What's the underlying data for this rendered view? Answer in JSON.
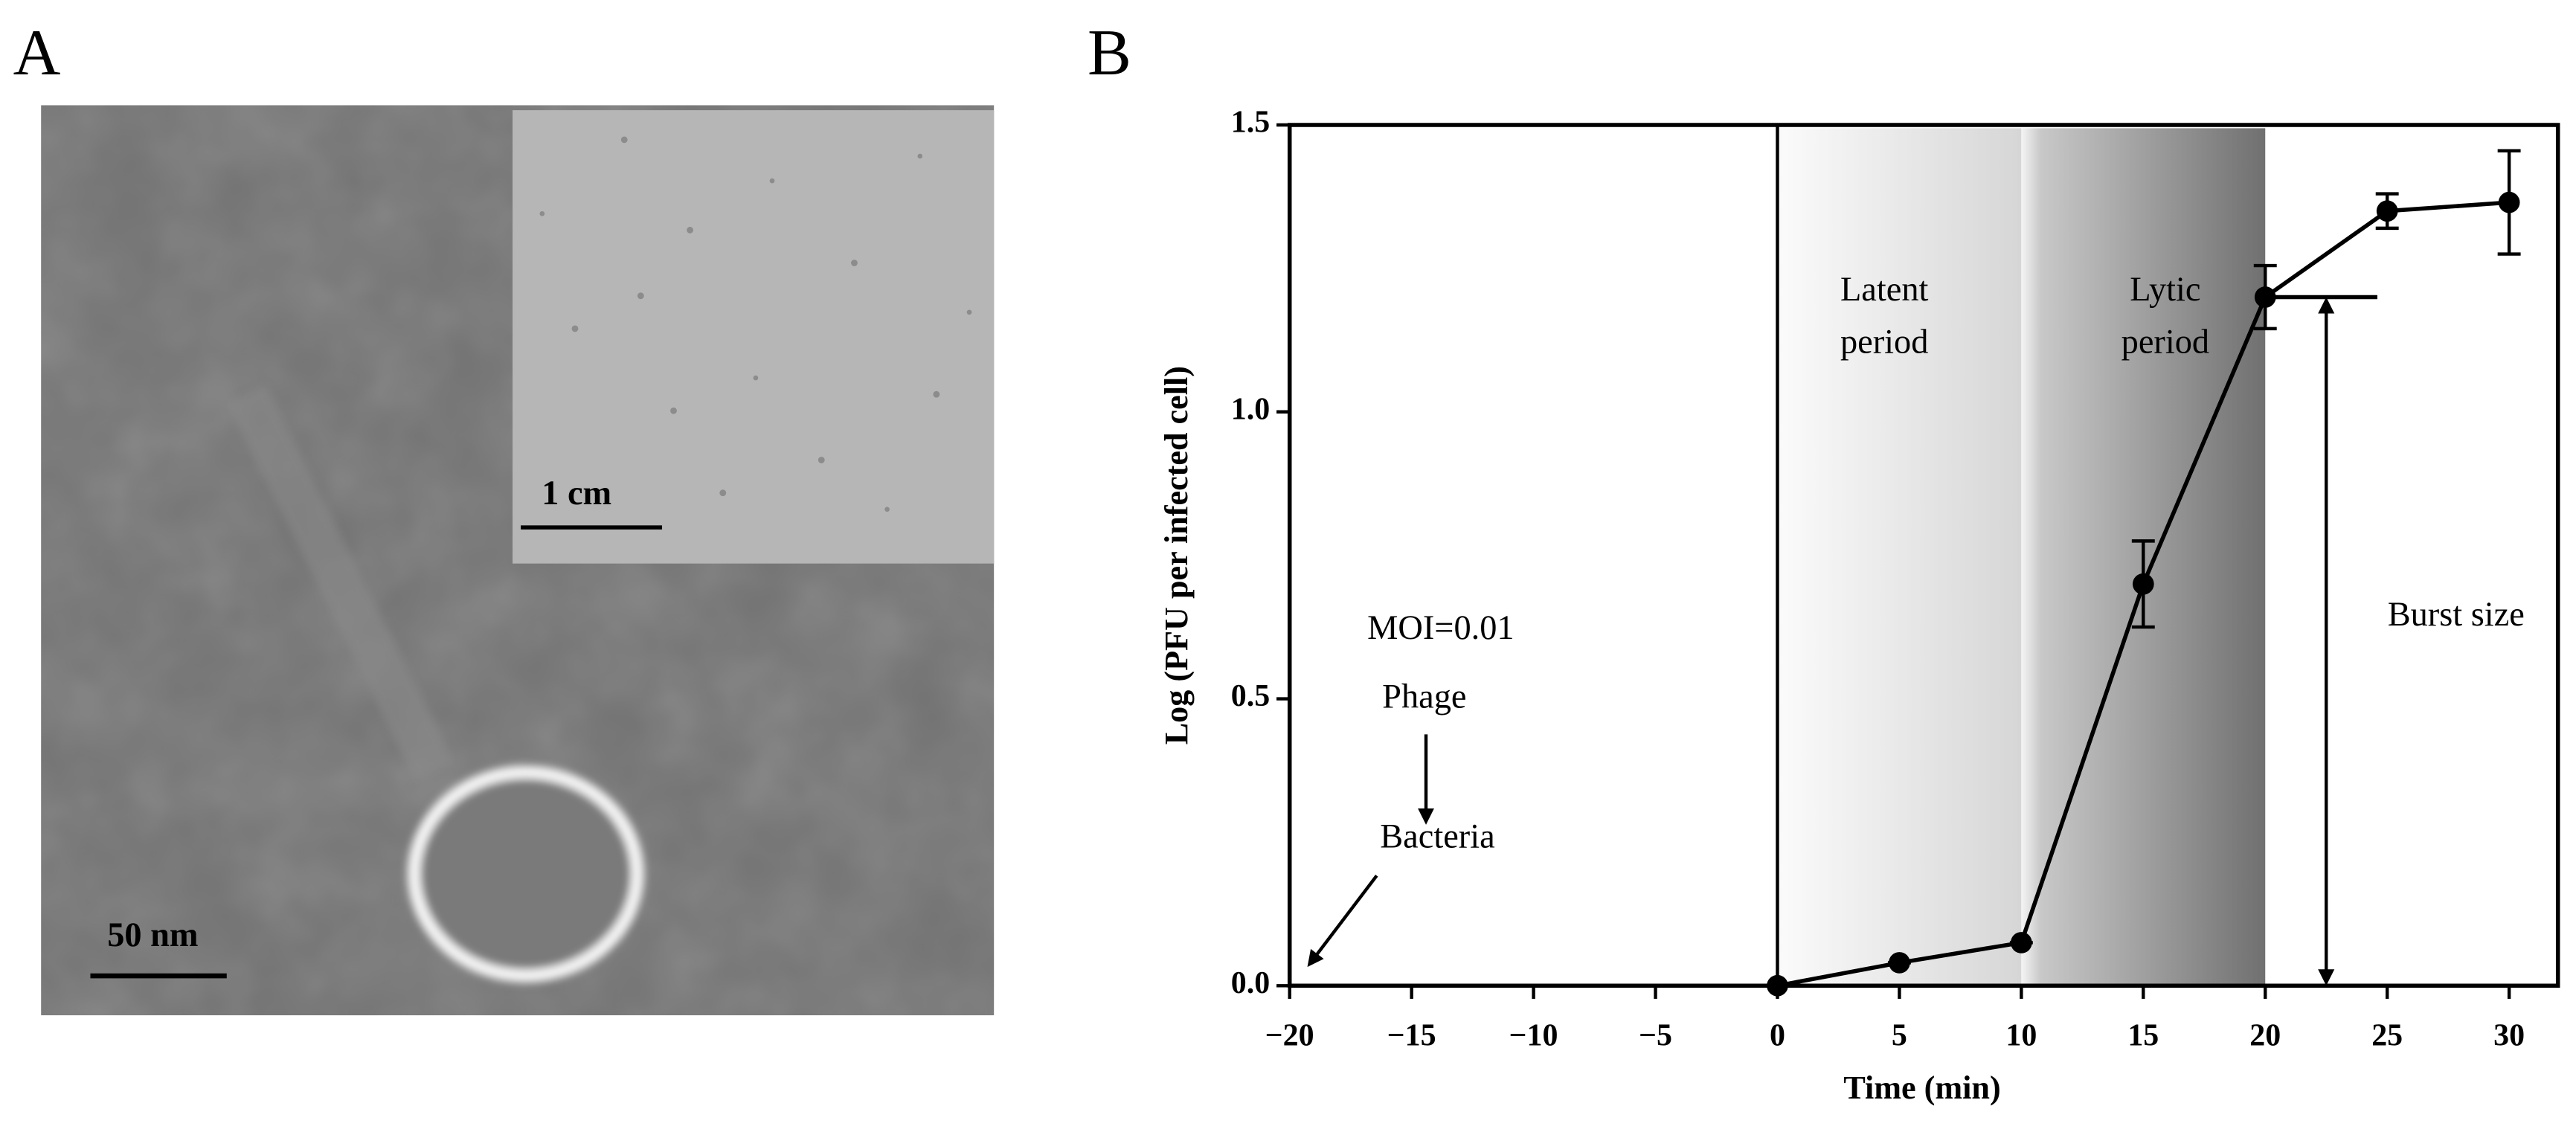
{
  "panel_a": {
    "label": "A",
    "scale_bar": "50 nm",
    "inset_scale_bar": "1 cm"
  },
  "chart_data": {
    "type": "line",
    "panel_label": "B",
    "x": [
      0,
      5,
      10,
      15,
      20,
      25,
      30
    ],
    "values": [
      0,
      0.04,
      0.075,
      0.7,
      1.2,
      1.35,
      1.365
    ],
    "errors": [
      0,
      0,
      0,
      0.075,
      0.055,
      0.03,
      0.09
    ],
    "color": "#000000",
    "xlabel": "Time (min)",
    "ylabel": "Log (PFU per infected cell)",
    "xlim": [
      -20,
      32
    ],
    "ylim": [
      0,
      1.5
    ],
    "xticks": [
      {
        "value": -20,
        "label": "−20"
      },
      {
        "value": -15,
        "label": "−15"
      },
      {
        "value": -10,
        "label": "−10"
      },
      {
        "value": -5,
        "label": "−5"
      },
      0,
      5,
      10,
      15,
      20,
      25,
      30
    ],
    "yticks": [
      {
        "value": 0,
        "label": "0.0"
      },
      {
        "value": 0.5,
        "label": "0.5"
      },
      {
        "value": 1,
        "label": "1.0"
      },
      {
        "value": 1.5,
        "label": "1.5"
      }
    ],
    "annotations": {
      "latent": [
        "Latent",
        "period"
      ],
      "lytic": [
        "Lytic",
        "period"
      ],
      "moi": "MOI=0.01",
      "phage": "Phage",
      "bacteria": "Bacteria",
      "burst": "Burst size"
    }
  }
}
